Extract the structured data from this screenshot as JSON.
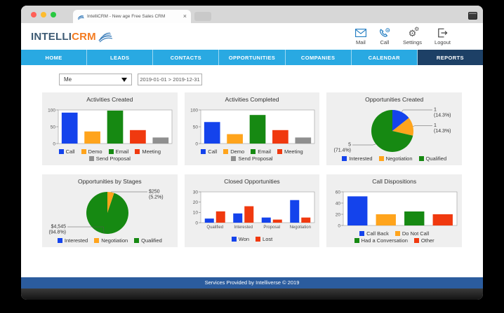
{
  "browser": {
    "tab_title": "IntelliCRM - New age Free Sales CRM",
    "close_glyph": "×"
  },
  "header": {
    "logo_primary": "INTELLI",
    "logo_accent": "CRM",
    "actions": [
      {
        "id": "mail",
        "label": "Mail"
      },
      {
        "id": "call",
        "label": "Call"
      },
      {
        "id": "settings",
        "label": "Settings"
      },
      {
        "id": "logout",
        "label": "Logout"
      }
    ]
  },
  "nav": {
    "items": [
      {
        "label": "HOME",
        "active": false
      },
      {
        "label": "LEADS",
        "active": false
      },
      {
        "label": "CONTACTS",
        "active": false
      },
      {
        "label": "OPPORTUNITIES",
        "active": false
      },
      {
        "label": "COMPANIES",
        "active": false
      },
      {
        "label": "CALENDAR",
        "active": false
      },
      {
        "label": "REPORTS",
        "active": true
      }
    ]
  },
  "filters": {
    "owner": "Me",
    "date_range": "2019-01-01 > 2019-12-31"
  },
  "colors": {
    "nav_blue": "#29a9e2",
    "nav_active": "#1d4066",
    "footer_blue": "#2b5c9e",
    "chart_blue": "#1443ec",
    "chart_orange": "#ffa41c",
    "chart_green": "#168912",
    "chart_red": "#f0390f",
    "chart_gray": "#8f8f8f"
  },
  "charts": [
    {
      "title": "Activities Created",
      "chart_data": {
        "type": "bar",
        "ymax": 100,
        "ticks": [
          0,
          50,
          100
        ],
        "show_x_labels": false,
        "categories": [
          "Call",
          "Demo",
          "Email",
          "Meeting",
          "Send Proposal"
        ],
        "values": [
          92,
          36,
          98,
          40,
          18
        ],
        "bar_colors": [
          "#1443ec",
          "#ffa41c",
          "#168912",
          "#f0390f",
          "#8f8f8f"
        ],
        "legend": [
          {
            "label": "Call",
            "color": "#1443ec"
          },
          {
            "label": "Demo",
            "color": "#ffa41c"
          },
          {
            "label": "Email",
            "color": "#168912"
          },
          {
            "label": "Meeting",
            "color": "#f0390f"
          },
          {
            "label": "Send Proposal",
            "color": "#8f8f8f"
          }
        ]
      }
    },
    {
      "title": "Activities Completed",
      "chart_data": {
        "type": "bar",
        "ymax": 100,
        "ticks": [
          0,
          50,
          100
        ],
        "show_x_labels": false,
        "categories": [
          "Call",
          "Demo",
          "Email",
          "Meeting",
          "Send Proposal"
        ],
        "values": [
          64,
          28,
          85,
          40,
          18
        ],
        "bar_colors": [
          "#1443ec",
          "#ffa41c",
          "#168912",
          "#f0390f",
          "#8f8f8f"
        ],
        "legend": [
          {
            "label": "Call",
            "color": "#1443ec"
          },
          {
            "label": "Demo",
            "color": "#ffa41c"
          },
          {
            "label": "Email",
            "color": "#168912"
          },
          {
            "label": "Meeting",
            "color": "#f0390f"
          },
          {
            "label": "Send Proposal",
            "color": "#8f8f8f"
          }
        ]
      }
    },
    {
      "title": "Opportunities Created",
      "chart_data": {
        "type": "pie",
        "slices": [
          {
            "label": "Interested",
            "color": "#1443ec",
            "pct": 14.3,
            "value_text": "1",
            "pct_text": "(14.3%)"
          },
          {
            "label": "Negotiation",
            "color": "#ffa41c",
            "pct": 14.3,
            "value_text": "1",
            "pct_text": "(14.3%)"
          },
          {
            "label": "Qualified",
            "color": "#168912",
            "pct": 71.4,
            "value_text": "5",
            "pct_text": "(71.4%)"
          }
        ],
        "legend": [
          {
            "label": "Interested",
            "color": "#1443ec"
          },
          {
            "label": "Negotiation",
            "color": "#ffa41c"
          },
          {
            "label": "Qualified",
            "color": "#168912"
          }
        ]
      }
    },
    {
      "title": "Opportunities by Stages",
      "chart_data": {
        "type": "pie",
        "slices": [
          {
            "label": "Interested",
            "color": "#1443ec",
            "pct": 0,
            "value_text": "",
            "pct_text": ""
          },
          {
            "label": "Negotiation",
            "color": "#ffa41c",
            "pct": 5.2,
            "value_text": "$250",
            "pct_text": "(5.2%)"
          },
          {
            "label": "Qualified",
            "color": "#168912",
            "pct": 94.8,
            "value_text": "$4,545",
            "pct_text": "(94.8%)"
          }
        ],
        "legend": [
          {
            "label": "Interested",
            "color": "#1443ec"
          },
          {
            "label": "Negotiation",
            "color": "#ffa41c"
          },
          {
            "label": "Qualified",
            "color": "#168912"
          }
        ]
      }
    },
    {
      "title": "Closed Opportunities",
      "chart_data": {
        "type": "bar",
        "ymax": 30,
        "ticks": [
          0,
          10,
          20,
          30
        ],
        "show_x_labels": true,
        "categories": [
          "Qualified",
          "Interested",
          "Proposal",
          "Negotiation"
        ],
        "series": [
          {
            "name": "Won",
            "color": "#1443ec",
            "values": [
              4,
              9,
              5,
              22
            ]
          },
          {
            "name": "Lost",
            "color": "#f0390f",
            "values": [
              11,
              16,
              3,
              5
            ]
          }
        ],
        "legend": [
          {
            "label": "Won",
            "color": "#1443ec"
          },
          {
            "label": "Lost",
            "color": "#f0390f"
          }
        ]
      }
    },
    {
      "title": "Call Dispositions",
      "chart_data": {
        "type": "bar",
        "ymax": 60,
        "ticks": [
          0,
          20,
          40,
          60
        ],
        "show_x_labels": false,
        "categories": [
          "Call Back",
          "Do Not Call",
          "Had a Conversation",
          "Other"
        ],
        "values": [
          52,
          20,
          25,
          20
        ],
        "bar_colors": [
          "#1443ec",
          "#ffa41c",
          "#168912",
          "#f0390f"
        ],
        "legend": [
          {
            "label": "Call Back",
            "color": "#1443ec"
          },
          {
            "label": "Do Not Call",
            "color": "#ffa41c"
          },
          {
            "label": "Had a Conversation",
            "color": "#168912"
          },
          {
            "label": "Other",
            "color": "#f0390f"
          }
        ]
      }
    }
  ],
  "footer": {
    "text": "Services Provided by Intelliverse © 2019"
  }
}
